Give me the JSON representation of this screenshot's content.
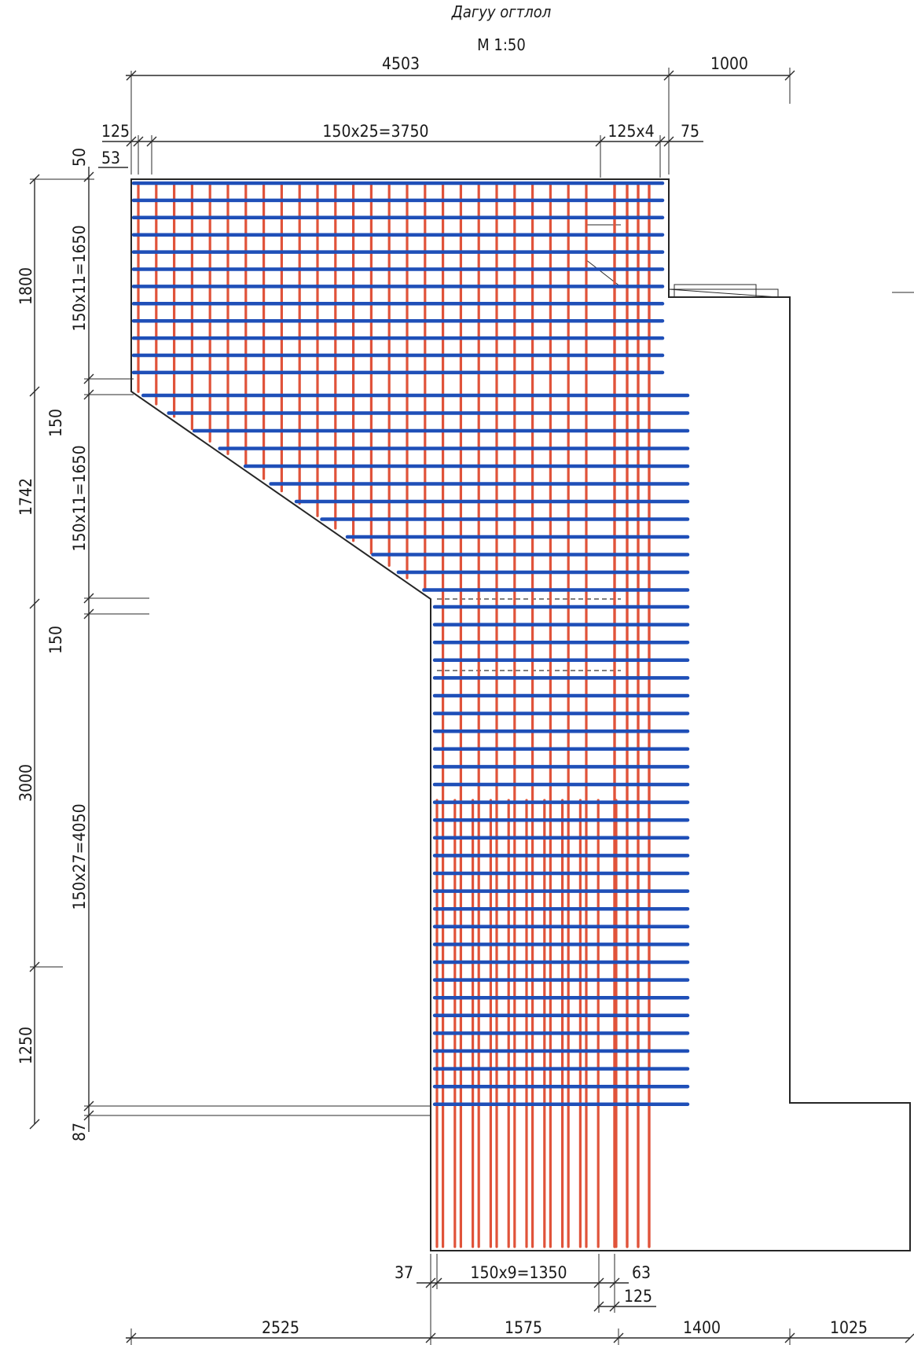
{
  "title": {
    "name": "Дагуу огтлол",
    "scale": "М 1:50"
  },
  "colors": {
    "horizontal_bars": "#1f4fb8",
    "vertical_bars": "#e0533a",
    "outline": "#262626"
  },
  "dimensions": {
    "top_overall": "4503",
    "top_right": "1000",
    "top_left_offset": "125",
    "top_bar_spacing": "150x25=3750",
    "top_edge_spacing": "125x4",
    "top_right_cover": "75",
    "cover_top": "50",
    "cover_left": "53",
    "left_h1": "1800",
    "left_h2": "1742",
    "left_h3": "3000",
    "left_h4": "1250",
    "inner_sp1": "150x11=1650",
    "inner_gap1": "150",
    "inner_sp2": "150x11=1650",
    "inner_gap2": "150",
    "inner_sp3": "150x27=4050",
    "inner_bottom": "87",
    "bottom_left_cover": "37",
    "bottom_spacing": "150x9=1350",
    "bottom_gap": "63",
    "bottom_edge": "125",
    "base_1": "2525",
    "base_2": "1575",
    "base_3": "1400",
    "base_4": "1025"
  }
}
